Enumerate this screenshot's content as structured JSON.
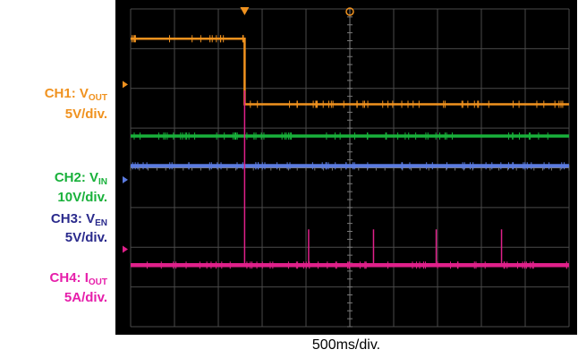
{
  "chart_data": {
    "type": "line",
    "time_base": "500ms/div.",
    "grid": {
      "divisions_x": 10,
      "divisions_y": 8,
      "color": "#4a4a4a"
    },
    "x_range_div": [
      0,
      10
    ],
    "y_range_div": [
      0,
      8
    ],
    "series": [
      {
        "id": "ch1",
        "label_main": "CH1: V",
        "label_sub": "OUT",
        "scale": "5V/div.",
        "color": "#f0921f",
        "width": 2.5,
        "marker_level_div": 6.1,
        "points": [
          [
            0,
            7.25
          ],
          [
            2.6,
            7.25
          ],
          [
            2.6,
            5.6
          ],
          [
            10,
            5.6
          ]
        ],
        "spikes": []
      },
      {
        "id": "ch2",
        "label_main": "CH2: V",
        "label_sub": "IN",
        "scale": "10V/div.",
        "color": "#19b13b",
        "width": 3.5,
        "marker_level_div": null,
        "points": [
          [
            0,
            4.8
          ],
          [
            10,
            4.8
          ]
        ],
        "spikes": []
      },
      {
        "id": "ch3",
        "label_main": "CH3: V",
        "label_sub": "EN",
        "scale": "5V/div.",
        "color": "#5b7be0",
        "width": 4,
        "marker_level_div": 3.7,
        "points": [
          [
            0,
            4.05
          ],
          [
            10,
            4.05
          ]
        ],
        "spikes": []
      },
      {
        "id": "ch4",
        "label_main": "CH4: I",
        "label_sub": "OUT",
        "scale": "5A/div.",
        "color": "#e0208a",
        "width": 4.5,
        "marker_level_div": 1.95,
        "points": [
          [
            0,
            1.55
          ],
          [
            10,
            1.55
          ]
        ],
        "spikes": [
          [
            2.6,
            4.4
          ],
          [
            4.06,
            0.9
          ],
          [
            5.54,
            0.9
          ],
          [
            6.97,
            0.9
          ],
          [
            8.46,
            0.9
          ]
        ]
      }
    ],
    "trigger_color": "#f0921f"
  }
}
